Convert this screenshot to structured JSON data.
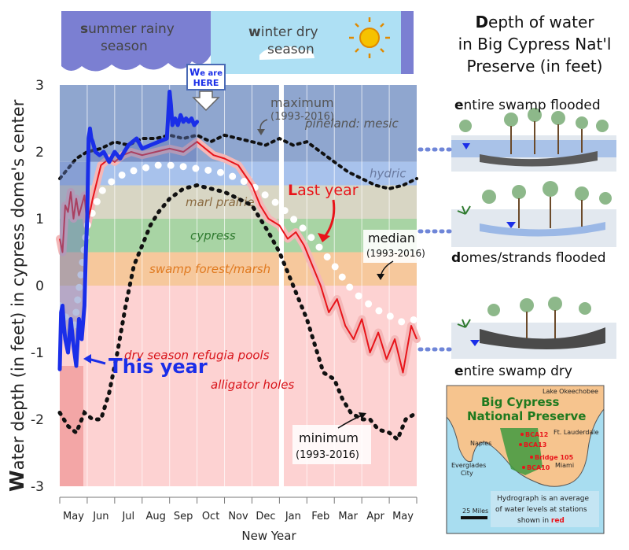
{
  "header": {
    "summer_first": "s",
    "summer_rest": "ummer rainy",
    "summer_line2": "season",
    "winter_first": "w",
    "winter_rest": "inter dry",
    "winter_line2": "season"
  },
  "side": {
    "title_first": "D",
    "title_rest": "epth of water",
    "title_line2": "in Big Cypress Nat'l",
    "title_line3": "Preserve (in feet)",
    "panel1_first": "e",
    "panel1_rest": "ntire swamp flooded",
    "panel2_first": "d",
    "panel2_rest": "omes/strands flooded",
    "panel3_first": "e",
    "panel3_rest": "ntire swamp dry"
  },
  "map": {
    "title_line1": "Big Cypress",
    "title_line2": "National Preserve",
    "lake": "Lake Okeechobee",
    "cities": [
      "Naples",
      "Ft. Lauderdale",
      "Everglades",
      "City",
      "Miami"
    ],
    "stations": [
      "BCA12",
      "BCA13",
      "Bridge 105",
      "BCA10"
    ],
    "scale": "25 Miles",
    "note_line1": "Hydrograph is an average",
    "note_line2": "of water levels at stations",
    "note_line3_pre": "shown in ",
    "note_line3_red": "red"
  },
  "colors": {
    "this_year": "#1a2ee8",
    "last_year": "#e8141a",
    "median": "#ffffff",
    "minmax": "#111111",
    "last_year_shade": "#f4b8b8"
  },
  "chart_data": {
    "type": "line",
    "ylabel_first": "W",
    "ylabel_rest": "ater depth (in feet) in cypress dome's center",
    "xlabel": "New Year",
    "ylim": [
      -3,
      3
    ],
    "yticks": [
      "3",
      "2",
      "1",
      "0",
      "-1",
      "-2",
      "-3"
    ],
    "months": [
      "May",
      "Jun",
      "Jul",
      "Aug",
      "Sep",
      "Oct",
      "Nov",
      "Dec",
      "Jan",
      "Feb",
      "Mar",
      "Apr",
      "May"
    ],
    "x_unit": "months since start of May",
    "zones": [
      {
        "name": "pineland: mesic",
        "from": 1.85,
        "to": 3.0,
        "color": "#8fa6cf"
      },
      {
        "name": "hydric",
        "from": 1.5,
        "to": 1.85,
        "color": "#a8c2ec"
      },
      {
        "name": "marl prairie",
        "from": 1.0,
        "to": 1.5,
        "color": "#d8d6c4"
      },
      {
        "name": "cypress",
        "from": 0.5,
        "to": 1.0,
        "color": "#a8d4a4"
      },
      {
        "name": "swamp forest/marsh",
        "from": 0.0,
        "to": 0.5,
        "color": "#f6c89c"
      },
      {
        "name": "dry season refugia pools",
        "from": -3.0,
        "to": 0.0,
        "color": "#fdd2d2"
      }
    ],
    "extra_labels": {
      "alligator_holes": "alligator holes",
      "we_are_first": "W",
      "we_are_rest": "e are",
      "here": "HERE"
    },
    "series": [
      {
        "name": "This year",
        "label_first": "T",
        "label_rest": "his year",
        "x": [
          0,
          0.05,
          0.1,
          0.15,
          0.2,
          0.3,
          0.4,
          0.5,
          0.6,
          0.7,
          0.8,
          0.9,
          0.95,
          1.0,
          1.05,
          1.1,
          1.15,
          1.2,
          1.3,
          1.45,
          1.6,
          1.8,
          2.0,
          2.2,
          2.5,
          2.8,
          3.0,
          3.3,
          3.6,
          3.9,
          4.0,
          4.05,
          4.1,
          4.2,
          4.3,
          4.4,
          4.5,
          4.6,
          4.7,
          4.8,
          4.9,
          5.0
        ],
        "y": [
          -1.25,
          -0.4,
          -0.3,
          -0.6,
          -0.8,
          -1.0,
          -0.5,
          -0.9,
          -1.2,
          -0.5,
          -0.8,
          -0.3,
          0.5,
          1.0,
          2.2,
          2.35,
          2.2,
          2.15,
          2.0,
          1.95,
          2.0,
          1.85,
          2.0,
          1.9,
          2.1,
          2.2,
          2.05,
          2.1,
          2.15,
          2.2,
          2.9,
          2.7,
          2.4,
          2.5,
          2.4,
          2.55,
          2.45,
          2.5,
          2.45,
          2.5,
          2.4,
          2.45
        ]
      },
      {
        "name": "Last year",
        "label_first": "L",
        "label_rest": "ast year",
        "x": [
          0,
          0.1,
          0.2,
          0.3,
          0.4,
          0.5,
          0.6,
          0.7,
          0.8,
          0.9,
          1.0,
          1.2,
          1.5,
          1.8,
          2.0,
          2.3,
          2.6,
          3.0,
          3.5,
          4.0,
          4.5,
          5.0,
          5.3,
          5.6,
          6.0,
          6.5,
          7.0,
          7.3,
          7.6,
          8.0,
          8.3,
          8.6,
          8.9,
          9.2,
          9.5,
          9.8,
          10.1,
          10.4,
          10.7,
          11.0,
          11.3,
          11.6,
          11.9,
          12.2,
          12.5,
          12.8,
          13.0
        ],
        "y": [
          0.7,
          0.5,
          1.2,
          1.1,
          1.4,
          1.0,
          1.3,
          1.05,
          1.2,
          1.35,
          0.9,
          1.3,
          1.8,
          1.9,
          1.85,
          1.95,
          2.0,
          1.95,
          2.0,
          2.05,
          2.0,
          2.15,
          2.05,
          1.95,
          1.9,
          1.8,
          1.5,
          1.2,
          1.0,
          0.9,
          0.7,
          0.8,
          0.6,
          0.3,
          0.0,
          -0.4,
          -0.2,
          -0.6,
          -0.8,
          -0.5,
          -1.0,
          -0.7,
          -1.1,
          -0.8,
          -1.3,
          -0.6,
          -0.8
        ]
      },
      {
        "name": "median",
        "name_period": "(1993-2016)",
        "x": [
          0,
          0.5,
          1.0,
          1.5,
          2.0,
          2.5,
          3.0,
          3.5,
          4.0,
          4.5,
          5.0,
          5.5,
          6.0,
          6.5,
          7.0,
          7.5,
          8.0,
          8.5,
          9.0,
          9.5,
          10.0,
          10.5,
          11.0,
          11.5,
          12.0,
          12.5,
          13.0
        ],
        "y": [
          -0.3,
          -0.7,
          0.9,
          1.4,
          1.6,
          1.7,
          1.75,
          1.8,
          1.8,
          1.78,
          1.75,
          1.72,
          1.68,
          1.6,
          1.5,
          1.35,
          1.2,
          1.0,
          0.8,
          0.55,
          0.3,
          0.0,
          -0.2,
          -0.35,
          -0.45,
          -0.55,
          -0.5
        ]
      },
      {
        "name": "maximum",
        "name_period": "(1993-2016)",
        "x": [
          0,
          0.3,
          0.6,
          1.0,
          1.5,
          2.0,
          2.5,
          3.0,
          3.5,
          4.0,
          4.5,
          5.0,
          5.5,
          6.0,
          6.5,
          7.0,
          7.5,
          8.0,
          8.5,
          9.0,
          9.5,
          10.0,
          10.5,
          11.0,
          11.5,
          12.0,
          12.5,
          13.0
        ],
        "y": [
          1.6,
          1.75,
          1.9,
          2.0,
          2.05,
          2.15,
          2.1,
          2.2,
          2.2,
          2.25,
          2.2,
          2.25,
          2.15,
          2.25,
          2.2,
          2.15,
          2.1,
          2.2,
          2.1,
          2.15,
          2.0,
          1.85,
          1.7,
          1.6,
          1.5,
          1.45,
          1.5,
          1.6
        ]
      },
      {
        "name": "minimum",
        "name_period": "(1993-2016)",
        "x": [
          0,
          0.3,
          0.6,
          0.9,
          1.2,
          1.5,
          1.8,
          2.1,
          2.4,
          2.7,
          3.0,
          3.3,
          3.6,
          4.0,
          4.5,
          5.0,
          5.5,
          6.0,
          6.5,
          7.0,
          7.3,
          7.6,
          8.0,
          8.3,
          8.6,
          9.0,
          9.3,
          9.6,
          10.0,
          10.3,
          10.6,
          11.0,
          11.3,
          11.6,
          12.0,
          12.3,
          12.6,
          13.0
        ],
        "y": [
          -1.9,
          -2.1,
          -2.2,
          -1.9,
          -2.0,
          -2.0,
          -1.6,
          -1.0,
          -0.3,
          0.3,
          0.6,
          0.9,
          1.1,
          1.3,
          1.45,
          1.5,
          1.45,
          1.4,
          1.3,
          1.2,
          1.0,
          0.8,
          0.5,
          0.2,
          -0.1,
          -0.5,
          -0.9,
          -1.3,
          -1.4,
          -1.7,
          -1.9,
          -2.0,
          -2.0,
          -2.15,
          -2.2,
          -2.3,
          -2.0,
          -1.9
        ]
      }
    ]
  }
}
